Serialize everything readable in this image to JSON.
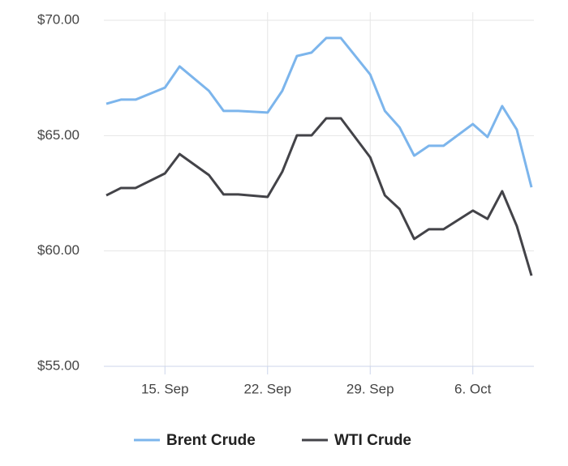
{
  "chart_data": {
    "type": "line",
    "x": [
      "09-11",
      "09-12",
      "09-13",
      "09-15",
      "09-16",
      "09-18",
      "09-19",
      "09-20",
      "09-22",
      "09-23",
      "09-24",
      "09-25",
      "09-26",
      "09-27",
      "09-29",
      "09-30",
      "10-01",
      "10-02",
      "10-03",
      "10-04",
      "10-06",
      "10-07",
      "10-08",
      "10-09",
      "10-10"
    ],
    "series": [
      {
        "name": "Brent Crude",
        "color": "#7cb5ec",
        "values": [
          66.38,
          66.56,
          66.56,
          67.08,
          68.0,
          66.94,
          66.07,
          66.07,
          66.0,
          66.94,
          68.45,
          68.6,
          69.23,
          69.23,
          67.65,
          66.07,
          65.36,
          64.13,
          64.56,
          64.56,
          65.5,
          64.94,
          66.28,
          65.26,
          62.76
        ]
      },
      {
        "name": "WTI Crude",
        "color": "#434348",
        "values": [
          62.41,
          62.73,
          62.73,
          63.36,
          64.2,
          63.29,
          62.45,
          62.45,
          62.34,
          63.43,
          65.01,
          65.01,
          65.75,
          65.75,
          64.06,
          62.41,
          61.82,
          60.52,
          60.94,
          60.94,
          61.75,
          61.39,
          62.59,
          61.08,
          58.93
        ]
      }
    ],
    "xlim": [
      "09-11",
      "10-10"
    ],
    "xticks": [
      {
        "value": "09-15",
        "label": "15. Sep"
      },
      {
        "value": "09-22",
        "label": "22. Sep"
      },
      {
        "value": "09-29",
        "label": "29. Sep"
      },
      {
        "value": "10-06",
        "label": "6. Oct"
      }
    ],
    "ylim": [
      55,
      70
    ],
    "yticks": [
      {
        "value": 55,
        "label": "$55.00"
      },
      {
        "value": 60,
        "label": "$60.00"
      },
      {
        "value": 65,
        "label": "$65.00"
      },
      {
        "value": 70,
        "label": "$70.00"
      }
    ],
    "grid": true,
    "legend": "bottom"
  }
}
